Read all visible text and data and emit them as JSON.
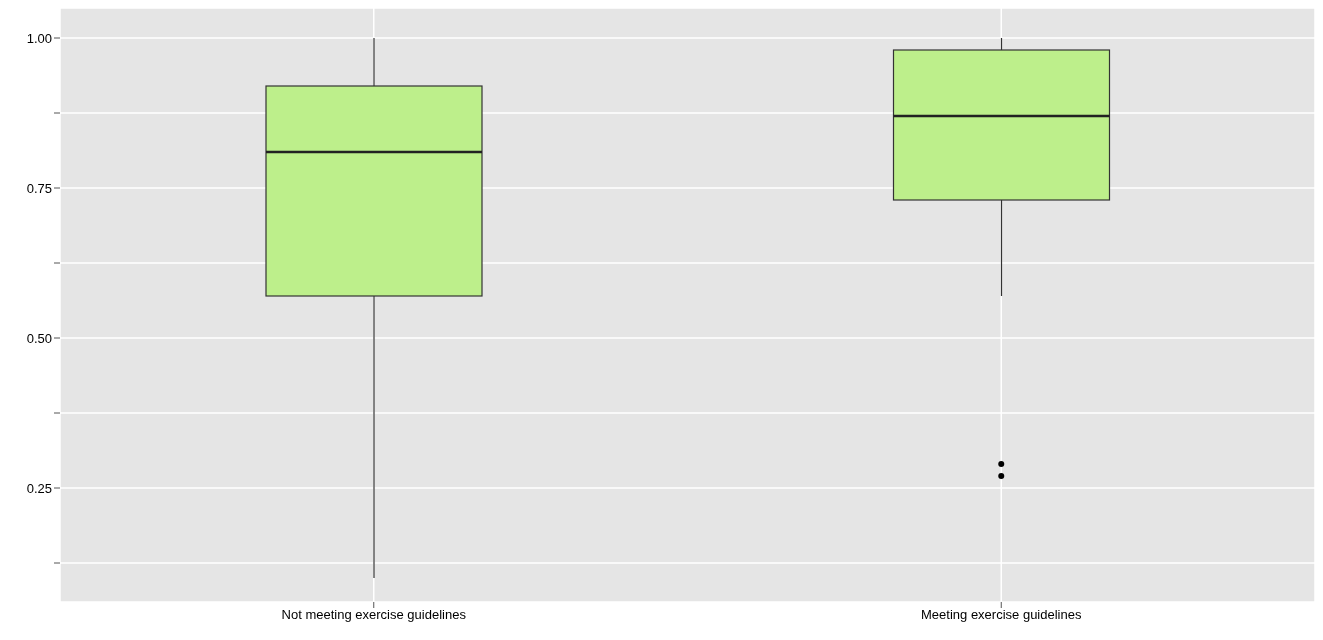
{
  "chart_data": {
    "type": "box",
    "categories": [
      "Not meeting exercise guidelines",
      "Meeting exercise guidelines"
    ],
    "color": "#bdef8b",
    "boxes": [
      {
        "low": 0.1,
        "q1": 0.57,
        "median": 0.81,
        "q3": 0.92,
        "high": 1.0
      },
      {
        "low": 0.57,
        "q1": 0.73,
        "median": 0.87,
        "q3": 0.98,
        "high": 1.0,
        "outliers": [
          0.29,
          0.27
        ]
      }
    ],
    "ylim": [
      0.06,
      1.05
    ],
    "yticks": [
      {
        "value": 0.125,
        "label": null
      },
      {
        "value": 0.25,
        "label": "0.25"
      },
      {
        "value": 0.375,
        "label": null
      },
      {
        "value": 0.5,
        "label": "0.50"
      },
      {
        "value": 0.625,
        "label": null
      },
      {
        "value": 0.75,
        "label": "0.75"
      },
      {
        "value": 0.875,
        "label": null
      },
      {
        "value": 1,
        "label": "1.00"
      }
    ],
    "grid": true
  }
}
